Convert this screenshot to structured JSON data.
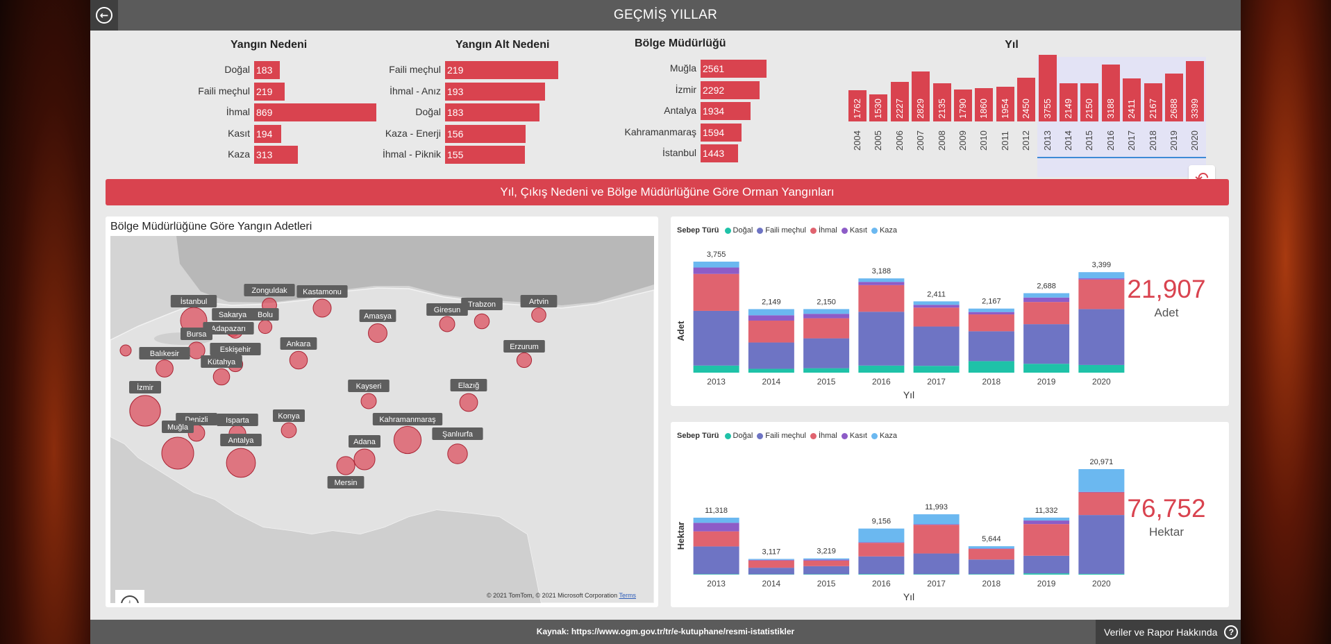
{
  "header": {
    "title": "GEÇMİŞ YILLAR"
  },
  "panels": {
    "neden": {
      "title": "Yangın Nedeni",
      "items": [
        {
          "label": "Doğal",
          "value": 183
        },
        {
          "label": "Faili meçhul",
          "value": 219
        },
        {
          "label": "İhmal",
          "value": 869
        },
        {
          "label": "Kasıt",
          "value": 194
        },
        {
          "label": "Kaza",
          "value": 313
        }
      ]
    },
    "alt_neden": {
      "title": "Yangın Alt Nedeni",
      "items": [
        {
          "label": "Faili meçhul",
          "value": 219
        },
        {
          "label": "İhmal - Anız",
          "value": 193
        },
        {
          "label": "Doğal",
          "value": 183
        },
        {
          "label": "Kaza - Enerji",
          "value": 156
        },
        {
          "label": "İhmal - Piknik",
          "value": 155
        }
      ]
    },
    "bolge": {
      "title": "Bölge Müdürlüğü",
      "items": [
        {
          "label": "Muğla",
          "value": 2561
        },
        {
          "label": "İzmir",
          "value": 2292
        },
        {
          "label": "Antalya",
          "value": 1934
        },
        {
          "label": "Kahramanmaraş",
          "value": 1594
        },
        {
          "label": "İstanbul",
          "value": 1443
        }
      ]
    }
  },
  "year_slicer": {
    "title": "Yıl",
    "selected_range": [
      "2013",
      "2020"
    ],
    "years": [
      "2004",
      "2005",
      "2006",
      "2007",
      "2008",
      "2009",
      "2010",
      "2011",
      "2012",
      "2013",
      "2014",
      "2015",
      "2016",
      "2017",
      "2018",
      "2019",
      "2020"
    ],
    "values": [
      1762,
      1530,
      2227,
      2829,
      2135,
      1790,
      1860,
      1954,
      2450,
      3755,
      2149,
      2150,
      3188,
      2411,
      2167,
      2688,
      3399
    ]
  },
  "banner": {
    "title": "Yıl, Çıkış Nedeni ve Bölge Müdürlüğüne Göre Orman Yangınları"
  },
  "map": {
    "title": "Bölge Müdürlüğüne Göre Yangın Adetleri",
    "credit": "© 2021 TomTom, © 2021 Microsoft Corporation",
    "terms": "Terms",
    "cities": [
      {
        "name": "İstanbul",
        "count": 1443
      },
      {
        "name": "Zonguldak",
        "count": 120
      },
      {
        "name": "Kastamonu",
        "count": 360
      },
      {
        "name": "Sakarya",
        "count": 80
      },
      {
        "name": "Bolu",
        "count": 70
      },
      {
        "name": "Adapazarı",
        "count": 110
      },
      {
        "name": "Bursa",
        "count": 260
      },
      {
        "name": "Eskişehir",
        "count": 130
      },
      {
        "name": "Balıkesir",
        "count": 290
      },
      {
        "name": "Kütahya",
        "count": 230
      },
      {
        "name": "Ankara",
        "count": 330
      },
      {
        "name": "Amasya",
        "count": 420
      },
      {
        "name": "Giresun",
        "count": 160
      },
      {
        "name": "Trabzon",
        "count": 140
      },
      {
        "name": "Artvin",
        "count": 110
      },
      {
        "name": "Erzurum",
        "count": 130
      },
      {
        "name": "İzmir",
        "count": 2292
      },
      {
        "name": "Denizli",
        "count": 240
      },
      {
        "name": "Isparta",
        "count": 260
      },
      {
        "name": "Konya",
        "count": 150
      },
      {
        "name": "Kayseri",
        "count": 160
      },
      {
        "name": "Elazığ",
        "count": 350
      },
      {
        "name": "Muğla",
        "count": 2561
      },
      {
        "name": "Antalya",
        "count": 1934
      },
      {
        "name": "Kahramanmaraş",
        "count": 1594
      },
      {
        "name": "Adana",
        "count": 650
      },
      {
        "name": "Mersin",
        "count": 370
      },
      {
        "name": "Şanlıurfa",
        "count": 520
      }
    ]
  },
  "legend": {
    "title": "Sebep Türü",
    "items": [
      {
        "name": "Doğal",
        "color": "#1fc2a8"
      },
      {
        "name": "Faili meçhul",
        "color": "#6e74c4"
      },
      {
        "name": "İhmal",
        "color": "#e0636f"
      },
      {
        "name": "Kasıt",
        "color": "#8d5cc7"
      },
      {
        "name": "Kaza",
        "color": "#6bb8f0"
      }
    ]
  },
  "chart_data": [
    {
      "type": "bar",
      "stacked": true,
      "xlabel": "Yıl",
      "ylabel": "Adet",
      "categories": [
        "2013",
        "2014",
        "2015",
        "2016",
        "2017",
        "2018",
        "2019",
        "2020"
      ],
      "totals": [
        3755,
        2149,
        2150,
        3188,
        2411,
        2167,
        2688,
        3399
      ],
      "series": [
        {
          "name": "Doğal",
          "values": [
            240,
            130,
            150,
            240,
            230,
            390,
            300,
            260
          ]
        },
        {
          "name": "Faili meçhul",
          "values": [
            1850,
            890,
            1010,
            1820,
            1330,
            1010,
            1340,
            1890
          ]
        },
        {
          "name": "İhmal",
          "values": [
            1250,
            740,
            680,
            900,
            640,
            570,
            750,
            1000
          ]
        },
        {
          "name": "Kasıt",
          "values": [
            215,
            180,
            150,
            110,
            95,
            80,
            150,
            40
          ]
        },
        {
          "name": "Kaza",
          "values": [
            200,
            209,
            160,
            118,
            116,
            117,
            148,
            209
          ]
        }
      ],
      "kpi": {
        "value": "21,907",
        "label": "Adet"
      }
    },
    {
      "type": "bar",
      "stacked": true,
      "xlabel": "Yıl",
      "ylabel": "Hektar",
      "categories": [
        "2013",
        "2014",
        "2015",
        "2016",
        "2017",
        "2018",
        "2019",
        "2020"
      ],
      "totals": [
        11318,
        3117,
        3219,
        9156,
        11993,
        5644,
        11332,
        20971
      ],
      "series": [
        {
          "name": "Doğal",
          "values": [
            100,
            60,
            80,
            120,
            100,
            100,
            250,
            150
          ]
        },
        {
          "name": "Faili meçhul",
          "values": [
            5500,
            1300,
            1600,
            3500,
            4100,
            2900,
            3500,
            11700
          ]
        },
        {
          "name": "İhmal",
          "values": [
            3000,
            1450,
            1100,
            2700,
            5700,
            2100,
            6300,
            4500
          ]
        },
        {
          "name": "Kasıt",
          "values": [
            1700,
            120,
            200,
            100,
            100,
            100,
            700,
            100
          ]
        },
        {
          "name": "Kaza",
          "values": [
            1018,
            187,
            239,
            2736,
            1993,
            444,
            582,
            4521
          ]
        }
      ],
      "kpi": {
        "value": "76,752",
        "label": "Hektar"
      }
    }
  ],
  "footer": {
    "source": "Kaynak: https://www.ogm.gov.tr/tr/e-kutuphane/resmi-istatistikler",
    "about": "Veriler ve Rapor Hakkında"
  },
  "colors": {
    "accent": "#d9434f",
    "bar_header": "#5b5b5b"
  }
}
